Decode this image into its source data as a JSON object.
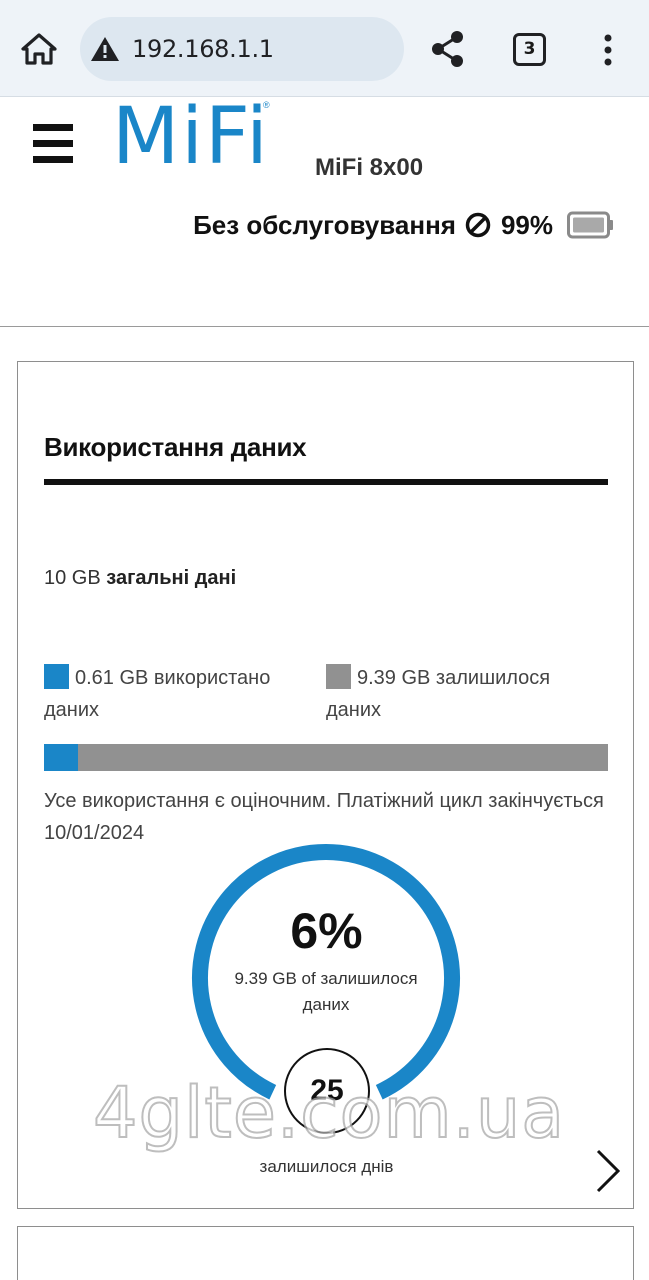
{
  "browser": {
    "url": "192.168.1.1",
    "tab_count": "3",
    "icons": [
      "home-icon",
      "warning-icon",
      "share-icon",
      "tabs-icon",
      "more-vert-icon"
    ]
  },
  "header": {
    "logo_text": "MiFi",
    "model": "MiFi 8x00",
    "status_text": "Без обслуговування",
    "battery_percent": "99%"
  },
  "usage_card": {
    "title": "Використання даних",
    "total_amount": "10 GB",
    "total_label": "загальні дані",
    "used_label": "0.61 GB використано даних",
    "remaining_label": "9.39 GB залишилося даних",
    "used_fraction": 0.061,
    "note": "Усе використання є оціночним. Платіжний цикл закінчується 10/01/2024",
    "gauge_percent": "6%",
    "gauge_sub": "9.39 GB of залишилося даних",
    "days_left": "25",
    "days_label": "залишилося днів",
    "watermark": "4glte.com.ua"
  },
  "colors": {
    "accent": "#1a86c8",
    "remaining": "#919191",
    "browser_bar": "#eef3f8"
  }
}
